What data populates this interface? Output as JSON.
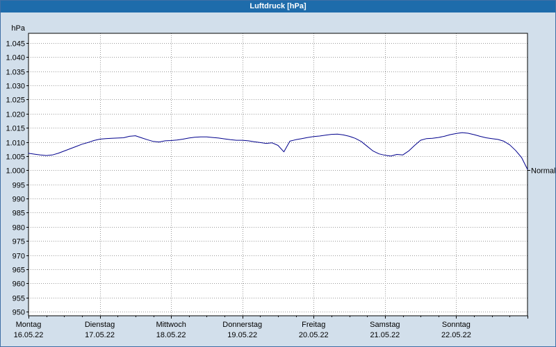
{
  "window": {
    "title": "Luftdruck [hPa]"
  },
  "colors": {
    "titlebar": "#1e6cab",
    "titlebar_text": "#ffffff",
    "background": "#d2dfeb",
    "plot_background": "#ffffff",
    "plot_border": "#000000",
    "grid": "#999999",
    "line": "#00008c",
    "frame": "#3f6fa5"
  },
  "chart_data": {
    "type": "line",
    "title": "Luftdruck [hPa]",
    "ylabel": "hPa",
    "unit_label": "hPa",
    "ylim": [
      950,
      1045
    ],
    "grid": "dotted",
    "legend_position": "none",
    "y_ticks": [
      {
        "value": 1045,
        "label": "1.045"
      },
      {
        "value": 1040,
        "label": "1.040"
      },
      {
        "value": 1035,
        "label": "1.035"
      },
      {
        "value": 1030,
        "label": "1.030"
      },
      {
        "value": 1025,
        "label": "1.025"
      },
      {
        "value": 1020,
        "label": "1.020"
      },
      {
        "value": 1015,
        "label": "1.015"
      },
      {
        "value": 1010,
        "label": "1.010"
      },
      {
        "value": 1005,
        "label": "1.005"
      },
      {
        "value": 1000,
        "label": "1.000"
      },
      {
        "value": 995,
        "label": "995"
      },
      {
        "value": 990,
        "label": "990"
      },
      {
        "value": 985,
        "label": "985"
      },
      {
        "value": 980,
        "label": "980"
      },
      {
        "value": 975,
        "label": "975"
      },
      {
        "value": 970,
        "label": "970"
      },
      {
        "value": 965,
        "label": "965"
      },
      {
        "value": 960,
        "label": "960"
      },
      {
        "value": 955,
        "label": "955"
      },
      {
        "value": 950,
        "label": "950"
      }
    ],
    "x_days": [
      {
        "name": "Montag",
        "date": "16.05.22"
      },
      {
        "name": "Dienstag",
        "date": "17.05.22"
      },
      {
        "name": "Mittwoch",
        "date": "18.05.22"
      },
      {
        "name": "Donnerstag",
        "date": "19.05.22"
      },
      {
        "name": "Freitag",
        "date": "20.05.22"
      },
      {
        "name": "Samstag",
        "date": "21.05.22"
      },
      {
        "name": "Sonntag",
        "date": "22.05.22"
      }
    ],
    "x_total_hours": 168,
    "series": [
      {
        "name": "Luftdruck",
        "x_start_hour": 0,
        "x_step_hours": 2,
        "values": [
          1006.0,
          1005.7,
          1005.4,
          1005.2,
          1005.4,
          1006.0,
          1006.8,
          1007.6,
          1008.4,
          1009.2,
          1009.8,
          1010.5,
          1011.0,
          1011.2,
          1011.3,
          1011.4,
          1011.5,
          1012.0,
          1012.2,
          1011.5,
          1010.8,
          1010.2,
          1010.0,
          1010.4,
          1010.5,
          1010.7,
          1011.0,
          1011.4,
          1011.7,
          1011.8,
          1011.8,
          1011.6,
          1011.4,
          1011.1,
          1010.8,
          1010.6,
          1010.6,
          1010.4,
          1010.1,
          1009.8,
          1009.5,
          1009.7,
          1008.8,
          1006.5,
          1010.3,
          1010.8,
          1011.2,
          1011.6,
          1011.9,
          1012.1,
          1012.4,
          1012.7,
          1012.8,
          1012.5,
          1012.0,
          1011.3,
          1010.2,
          1008.5,
          1006.8,
          1005.8,
          1005.3,
          1005.0,
          1005.6,
          1005.4,
          1006.8,
          1008.8,
          1010.6,
          1011.2,
          1011.3,
          1011.6,
          1012.0,
          1012.6,
          1013.0,
          1013.3,
          1013.1,
          1012.6,
          1012.0,
          1011.5,
          1011.2,
          1010.9,
          1010.3,
          1009.0,
          1007.0,
          1004.5,
          1000.3
        ]
      }
    ],
    "annotations": [
      {
        "label": "Normal",
        "value": 1000
      }
    ]
  }
}
